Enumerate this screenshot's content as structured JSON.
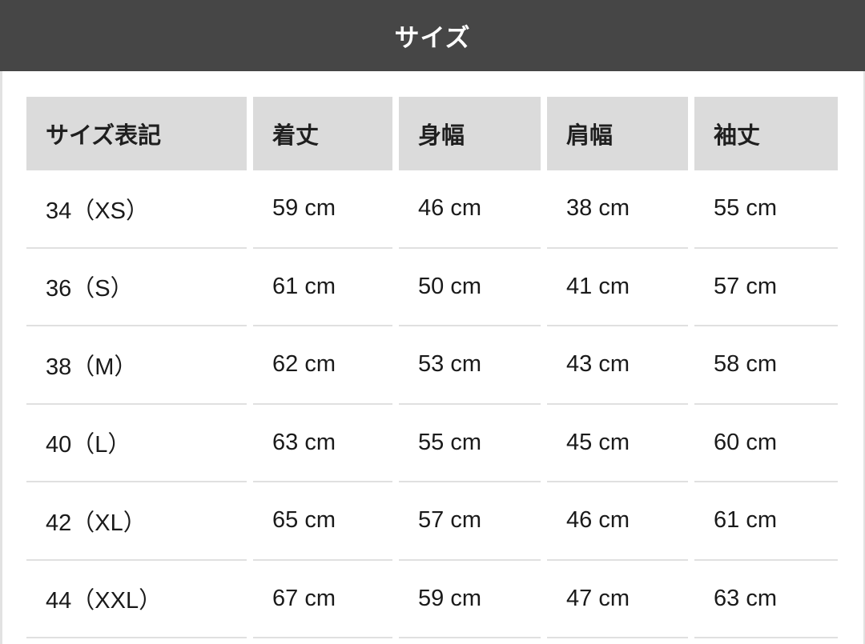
{
  "title_bar": {
    "title": "サイズ"
  },
  "table": {
    "columns": [
      "サイズ表記",
      "着丈",
      "身幅",
      "肩幅",
      "袖丈"
    ],
    "rows": [
      [
        "34（XS）",
        "59 cm",
        "46 cm",
        "38 cm",
        "55 cm"
      ],
      [
        "36（S）",
        "61 cm",
        "50 cm",
        "41 cm",
        "57 cm"
      ],
      [
        "38（M）",
        "62 cm",
        "53 cm",
        "43 cm",
        "58 cm"
      ],
      [
        "40（L）",
        "63 cm",
        "55 cm",
        "45 cm",
        "60 cm"
      ],
      [
        "42（XL）",
        "65 cm",
        "57 cm",
        "46 cm",
        "61 cm"
      ],
      [
        "44（XXL）",
        "67 cm",
        "59 cm",
        "47 cm",
        "63 cm"
      ]
    ]
  },
  "colors": {
    "title_bar_bg": "#464646",
    "title_text": "#ffffff",
    "header_cell_bg": "#dbdbdb",
    "body_text": "#1a1a1a",
    "row_separator": "#e0e0e0",
    "page_bg": "#ffffff"
  }
}
